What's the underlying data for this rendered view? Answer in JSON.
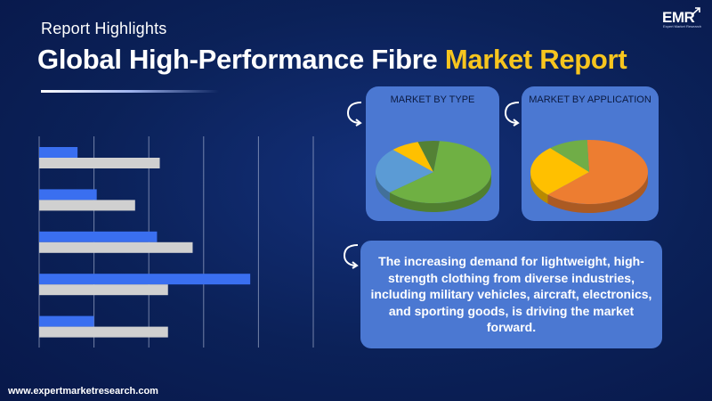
{
  "header": {
    "subtitle": "Report Highlights",
    "title_main": "Global High-Performance Fibre ",
    "title_accent": "Market Report"
  },
  "logo": {
    "text": "EMR",
    "tagline": "Expert Market Research"
  },
  "colors": {
    "background": "#0b2057",
    "accent_yellow": "#f7c51e",
    "card_blue": "#4b78d2",
    "bar_blue": "#3a6ff0",
    "bar_grey": "#d0d0d0"
  },
  "chart_data": [
    {
      "type": "bar",
      "orientation": "horizontal",
      "title": "",
      "xlabel": "",
      "ylabel": "",
      "categories": [
        "",
        "",
        "",
        "",
        ""
      ],
      "series": [
        {
          "values": [
            7,
            10.5,
            21.5,
            38.5,
            10
          ]
        },
        {
          "values": [
            22,
            17.5,
            28,
            23.5,
            23.5
          ]
        }
      ],
      "xlim": [
        0,
        50
      ],
      "grid": "vertical",
      "tick_labels": "none"
    },
    {
      "type": "pie",
      "title": "MARKET BY TYPE",
      "values": [
        62,
        24,
        8,
        6
      ],
      "colors": [
        "#6fb043",
        "#5b9bd5",
        "#ffc000",
        "#538135"
      ]
    },
    {
      "type": "pie",
      "title": "MARKET BY APPLICATION",
      "values": [
        63,
        26,
        11
      ],
      "colors": [
        "#ed7d31",
        "#ffc000",
        "#70ad47"
      ]
    }
  ],
  "highlight_text": "The increasing demand for lightweight, high-strength clothing from diverse industries, including military vehicles, aircraft, electronics, and sporting goods, is driving the market forward.",
  "footer": {
    "url": "www.expertmarketresearch.com"
  }
}
